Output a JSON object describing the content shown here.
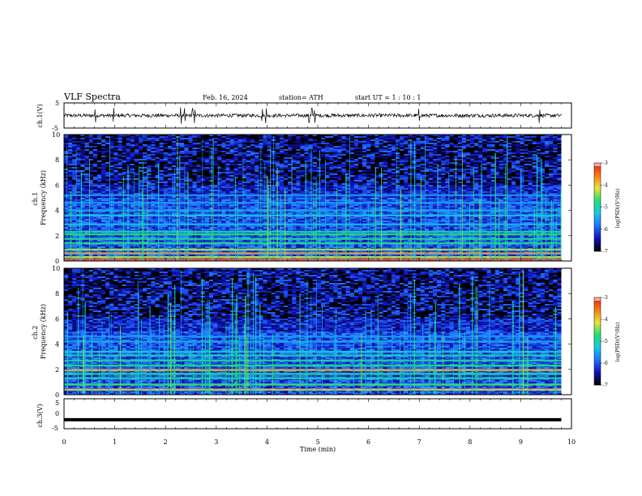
{
  "header": {
    "title": "VLF  Spectra",
    "date": "Feb. 16, 2024",
    "station": "station= ATH",
    "start_ut": "start  UT  =   1  : 10 : 1"
  },
  "colors": {
    "background": "#ffffff",
    "frame": "#000000",
    "colormap": [
      "#000000",
      "#1010b8",
      "#1f6fff",
      "#18c8e8",
      "#20e070",
      "#e6e63a",
      "#ff7a10",
      "#e02020",
      "#ffffff"
    ]
  },
  "chart_data": [
    {
      "type": "line",
      "panel": "ch1",
      "ylabel": "ch.1(V)",
      "ylim": [
        -5,
        5
      ],
      "yticks": [
        "5",
        "-5"
      ],
      "x_range_min": [
        0,
        9.8
      ],
      "mean_level_v": 0,
      "noise_amplitude_v": 0.7,
      "spike_times_min": [
        0.62,
        0.98,
        2.3,
        2.38,
        2.53,
        2.58,
        3.9,
        3.98,
        4.83,
        4.88,
        4.94,
        7.0,
        9.37
      ]
    },
    {
      "type": "heatmap",
      "panel": "ch1-spectrogram",
      "ylabel": "ch.1\nFrequency  (kHz)",
      "yticks": [
        "0",
        "2",
        "4",
        "6",
        "8",
        "10"
      ],
      "ylim_khz": [
        0,
        10
      ],
      "x_range_min": [
        0,
        9.8
      ],
      "colorbar_label": "log(PSD)(V²/Hz)",
      "colorbar_range": [
        -7,
        -3
      ],
      "colorbar_ticks": [
        "-3",
        "-4",
        "-5",
        "-6",
        "-7"
      ],
      "bands_khz": [
        {
          "f": 0.1,
          "level": -3.4
        },
        {
          "f": 0.3,
          "level": -4.2
        },
        {
          "f": 0.6,
          "level": -3.8
        },
        {
          "f": 0.9,
          "level": -4.3
        },
        {
          "f": 1.4,
          "level": -4.7
        },
        {
          "f": 1.75,
          "level": -4.9
        },
        {
          "f": 2.1,
          "level": -4.7
        },
        {
          "f": 2.3,
          "level": -5.0
        },
        {
          "f": 2.9,
          "level": -5.4
        },
        {
          "f": 3.6,
          "level": -5.3
        },
        {
          "f": 4.0,
          "level": -5.5
        },
        {
          "f": 4.6,
          "level": -5.6
        },
        {
          "f": 5.2,
          "level": -5.6
        }
      ]
    },
    {
      "type": "heatmap",
      "panel": "ch2-spectrogram",
      "ylabel": "ch.2\nFrequency  (kHz)",
      "yticks": [
        "0",
        "2",
        "4",
        "6",
        "8",
        "10"
      ],
      "ylim_khz": [
        0,
        10
      ],
      "x_range_min": [
        0,
        9.8
      ],
      "colorbar_label": "log(PSD)(V²/Hz)",
      "colorbar_range": [
        -7,
        -3
      ],
      "colorbar_ticks": [
        "-3",
        "-4",
        "-5",
        "-6",
        "-7"
      ],
      "bands_khz": [
        {
          "f": 0.4,
          "level": -4.0
        },
        {
          "f": 0.8,
          "level": -4.6
        },
        {
          "f": 1.3,
          "level": -4.9
        },
        {
          "f": 1.65,
          "level": -4.8
        },
        {
          "f": 1.95,
          "level": -3.9
        },
        {
          "f": 2.3,
          "level": -4.7
        },
        {
          "f": 2.7,
          "level": -4.9
        },
        {
          "f": 3.1,
          "level": -5.0
        },
        {
          "f": 3.4,
          "level": -5.2
        },
        {
          "f": 4.2,
          "level": -5.5
        },
        {
          "f": 4.6,
          "level": -5.6
        }
      ]
    },
    {
      "type": "line",
      "panel": "ch3",
      "ylabel": "ch.3(V)",
      "ylim": [
        -5,
        5
      ],
      "yticks": [
        "5",
        "0",
        "-5"
      ],
      "x_range_min": [
        0,
        9.8
      ],
      "mean_level_v": -2,
      "xlabel": "Time  (min)",
      "xticks": [
        "0",
        "1",
        "2",
        "3",
        "4",
        "5",
        "6",
        "7",
        "8",
        "9",
        "10"
      ],
      "xlim": [
        0,
        10
      ]
    }
  ]
}
